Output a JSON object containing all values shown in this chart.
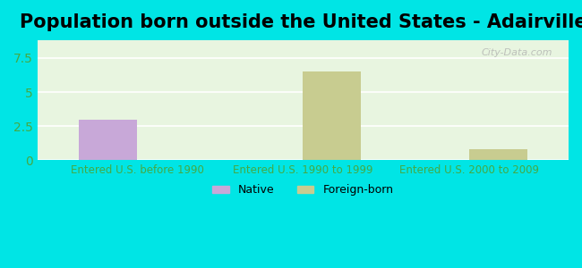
{
  "title": "Population born outside the United States - Adairville",
  "categories": [
    "Entered U.S. before 1990",
    "Entered U.S. 1990 to 1999",
    "Entered U.S. 2000 to 2009"
  ],
  "native_values": [
    3.0,
    0,
    0
  ],
  "foreign_values": [
    0,
    6.5,
    0.8
  ],
  "native_color": "#c8a8d8",
  "foreign_color": "#c8cc90",
  "background_outer": "#00e5e5",
  "background_inner": "#e8f5e0",
  "ylim": [
    0,
    8.8
  ],
  "yticks": [
    0,
    2.5,
    5,
    7.5
  ],
  "bar_width": 0.35,
  "title_fontsize": 15,
  "tick_color": "#44aa44",
  "legend_native": "Native",
  "legend_foreign": "Foreign-born",
  "watermark": "City-Data.com"
}
